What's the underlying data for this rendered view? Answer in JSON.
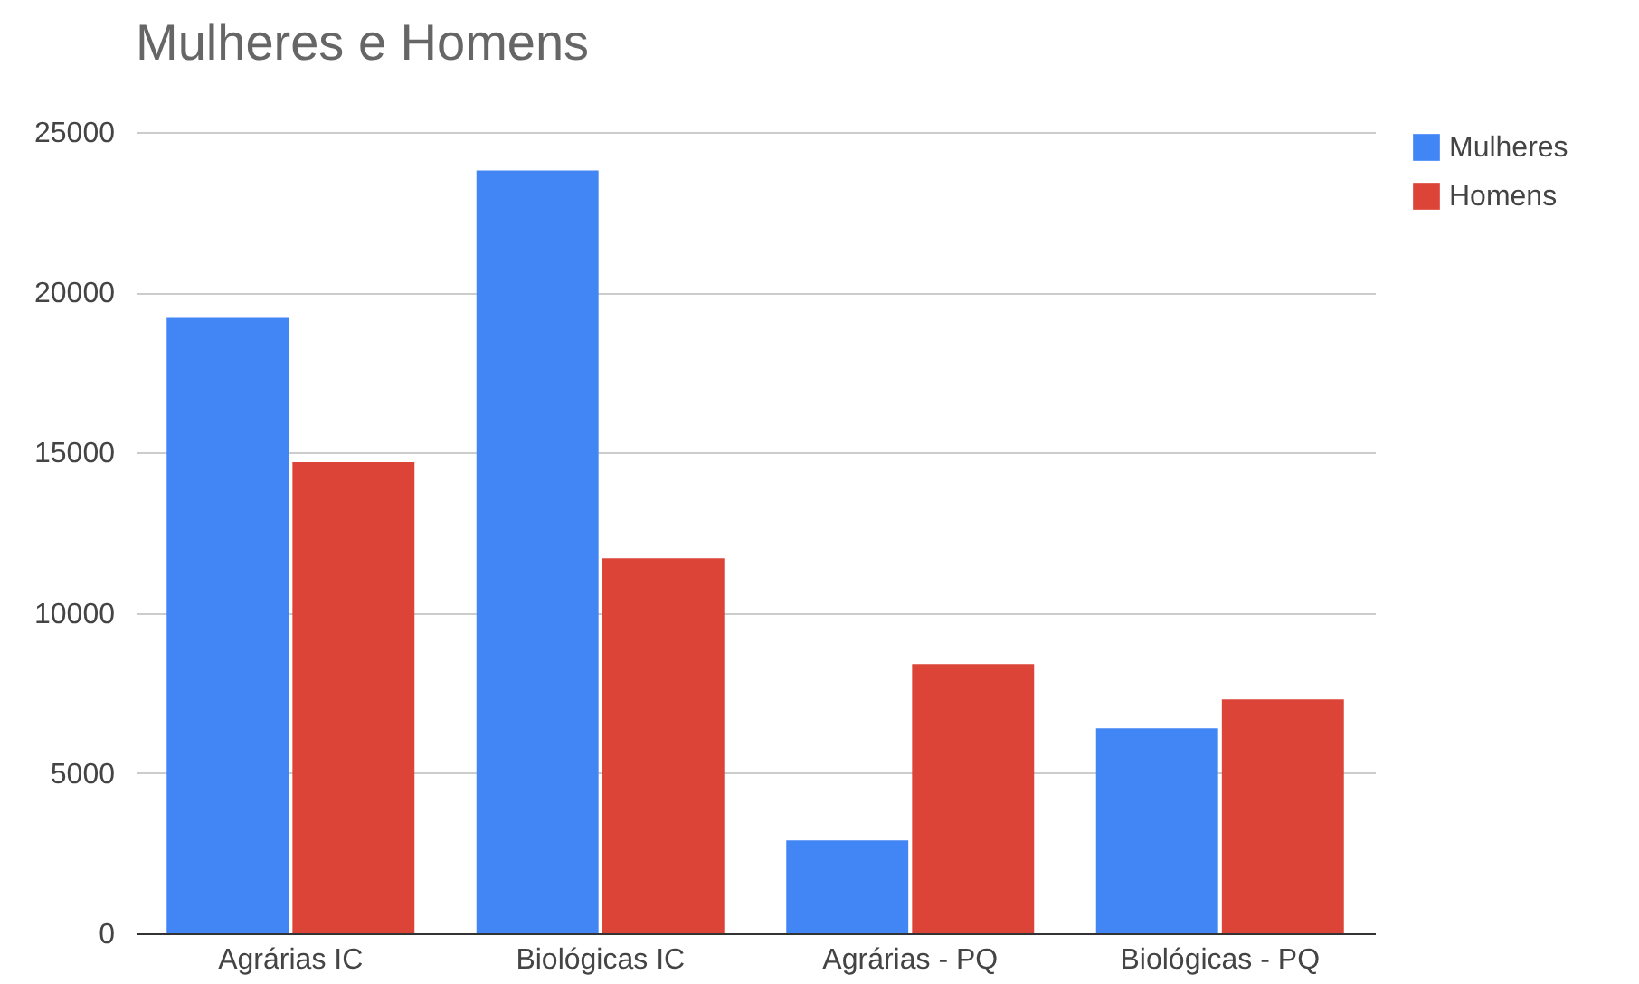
{
  "chart_data": {
    "type": "bar",
    "title": "Mulheres e Homens",
    "categories": [
      "Agrárias IC",
      "Biológicas IC",
      "Agrárias - PQ",
      "Biológicas - PQ"
    ],
    "series": [
      {
        "name": "Mulheres",
        "color": "#4285f4",
        "values": [
          19200,
          23800,
          2900,
          6400
        ]
      },
      {
        "name": "Homens",
        "color": "#db4437",
        "values": [
          14700,
          11700,
          8400,
          7300
        ]
      }
    ],
    "ylim": [
      0,
      25000
    ],
    "yticks": [
      0,
      5000,
      10000,
      15000,
      20000,
      25000
    ],
    "grid": "y",
    "legend": "top right"
  }
}
